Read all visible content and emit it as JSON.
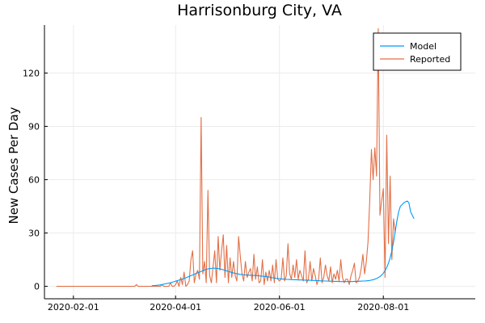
{
  "chart_data": {
    "type": "line",
    "title": "Harrisonburg City, VA",
    "xlabel": "",
    "ylabel": "New Cases Per Day",
    "x_start": "2020-01-22",
    "x_tick_labels": [
      "2020-02-01",
      "2020-04-01",
      "2020-06-01",
      "2020-08-01"
    ],
    "y_ticks": [
      0,
      30,
      60,
      90,
      120
    ],
    "xlim": [
      "2020-01-15",
      "2020-09-24"
    ],
    "ylim": [
      -7,
      147
    ],
    "grid": true,
    "legend_position": "top-right",
    "series": [
      {
        "name": "Model",
        "color": "#009af9",
        "start": "2020-03-18",
        "values": [
          0.3,
          0.4,
          0.5,
          0.6,
          0.7,
          0.8,
          1,
          1.2,
          1.4,
          1.6,
          1.8,
          2,
          2.3,
          2.6,
          2.9,
          3.2,
          3.5,
          3.8,
          4.1,
          4.4,
          4.8,
          5.2,
          5.6,
          6,
          6.4,
          6.8,
          7.2,
          7.6,
          8,
          8.4,
          8.8,
          9.2,
          9.5,
          9.8,
          10,
          10.1,
          10.2,
          10.2,
          10.1,
          10,
          9.8,
          9.6,
          9.3,
          9,
          8.7,
          8.4,
          8.1,
          7.8,
          7.5,
          7.3,
          7.1,
          6.9,
          6.7,
          6.6,
          6.5,
          6.4,
          6.3,
          6.3,
          6.2,
          6.2,
          6.1,
          6.1,
          6,
          5.9,
          5.8,
          5.7,
          5.6,
          5.5,
          5.4,
          5.2,
          5,
          4.8,
          4.7,
          4.5,
          4.4,
          4.3,
          4.2,
          4.1,
          4,
          3.9,
          3.9,
          3.8,
          3.8,
          3.7,
          3.7,
          3.7,
          3.6,
          3.6,
          3.6,
          3.5,
          3.5,
          3.5,
          3.4,
          3.4,
          3.4,
          3.3,
          3.3,
          3.2,
          3.2,
          3.1,
          3.1,
          3,
          3,
          3,
          2.9,
          2.9,
          2.9,
          2.8,
          2.8,
          2.8,
          2.7,
          2.7,
          2.7,
          2.7,
          2.7,
          2.7,
          2.7,
          2.7,
          2.7,
          2.8,
          2.8,
          2.8,
          2.9,
          2.9,
          3,
          3,
          3.1,
          3.2,
          3.3,
          3.5,
          3.7,
          4,
          4.4,
          4.9,
          5.5,
          6.3,
          7.4,
          8.8,
          10.6,
          13,
          16,
          20,
          25,
          31,
          37,
          42,
          45,
          46,
          47,
          47.5,
          48,
          47,
          42,
          40,
          38
        ],
        "values_units": "cases per day, one value per day"
      },
      {
        "name": "Reported",
        "color": "#e26f46",
        "start": "2020-01-22",
        "values": [
          0,
          0,
          0,
          0,
          0,
          0,
          0,
          0,
          0,
          0,
          0,
          0,
          0,
          0,
          0,
          0,
          0,
          0,
          0,
          0,
          0,
          0,
          0,
          0,
          0,
          0,
          0,
          0,
          0,
          0,
          0,
          0,
          0,
          0,
          0,
          0,
          0,
          0,
          0,
          0,
          0,
          0,
          0,
          0,
          0,
          0,
          0,
          1,
          0,
          0,
          0,
          0,
          0,
          0,
          0,
          0,
          0,
          0,
          0,
          0,
          0,
          0,
          1,
          0,
          0,
          0,
          0,
          2,
          0,
          0,
          1,
          3,
          0,
          5,
          1,
          8,
          0,
          1,
          3,
          15,
          20,
          2,
          7,
          9,
          4,
          95,
          7,
          14,
          2,
          54,
          6,
          2,
          11,
          20,
          2,
          28,
          9,
          20,
          29,
          5,
          23,
          2,
          16,
          5,
          14,
          6,
          3,
          28,
          17,
          7,
          3,
          14,
          5,
          8,
          10,
          3,
          18,
          4,
          11,
          2,
          3,
          15,
          1,
          8,
          3,
          9,
          3,
          12,
          2,
          15,
          4,
          3,
          4,
          16,
          3,
          6,
          24,
          7,
          4,
          12,
          5,
          15,
          4,
          9,
          6,
          3,
          20,
          2,
          4,
          14,
          3,
          10,
          6,
          1,
          4,
          16,
          2,
          5,
          12,
          6,
          3,
          11,
          2,
          7,
          4,
          9,
          3,
          15,
          5,
          2,
          4,
          4,
          1,
          6,
          9,
          13,
          2,
          3,
          5,
          10,
          18,
          7,
          14,
          25,
          48,
          77,
          60,
          78,
          62,
          145,
          40,
          48,
          55,
          5,
          85,
          24,
          62,
          15,
          38,
          30
        ],
        "values_units": "cases per day, one value per day"
      }
    ]
  }
}
